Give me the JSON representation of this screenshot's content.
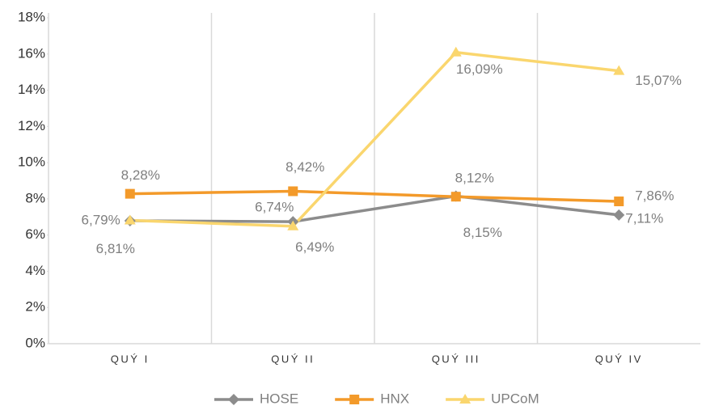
{
  "chart_data": {
    "type": "line",
    "categories": [
      "QUÝ I",
      "QUÝ II",
      "QUÝ III",
      "QUÝ IV"
    ],
    "series": [
      {
        "name": "HOSE",
        "color": "#8c8c8c",
        "marker": "diamond",
        "values": [
          6.79,
          6.74,
          8.15,
          7.11
        ],
        "value_labels": [
          "6,79%",
          "6,74%",
          "8,15%",
          "7,11%"
        ]
      },
      {
        "name": "HNX",
        "color": "#f39a2a",
        "marker": "square",
        "values": [
          8.28,
          8.42,
          8.12,
          7.86
        ],
        "value_labels": [
          "8,28%",
          "8,42%",
          "8,12%",
          "7,86%"
        ]
      },
      {
        "name": "UPCoM",
        "color": "#fad66e",
        "marker": "triangle",
        "values": [
          6.81,
          6.49,
          16.09,
          15.07
        ],
        "value_labels": [
          "6,81%",
          "6,49%",
          "16,09%",
          "15,07%"
        ]
      }
    ],
    "ylim": [
      0,
      18
    ],
    "yticks": [
      {
        "value": 0,
        "label": "0%"
      },
      {
        "value": 2,
        "label": "2%"
      },
      {
        "value": 4,
        "label": "4%"
      },
      {
        "value": 6,
        "label": "6%"
      },
      {
        "value": 8,
        "label": "8%"
      },
      {
        "value": 10,
        "label": "10%"
      },
      {
        "value": 12,
        "label": "12%"
      },
      {
        "value": 14,
        "label": "14%"
      },
      {
        "value": 16,
        "label": "16%"
      },
      {
        "value": 18,
        "label": "18%"
      }
    ],
    "legend": "bottom"
  }
}
